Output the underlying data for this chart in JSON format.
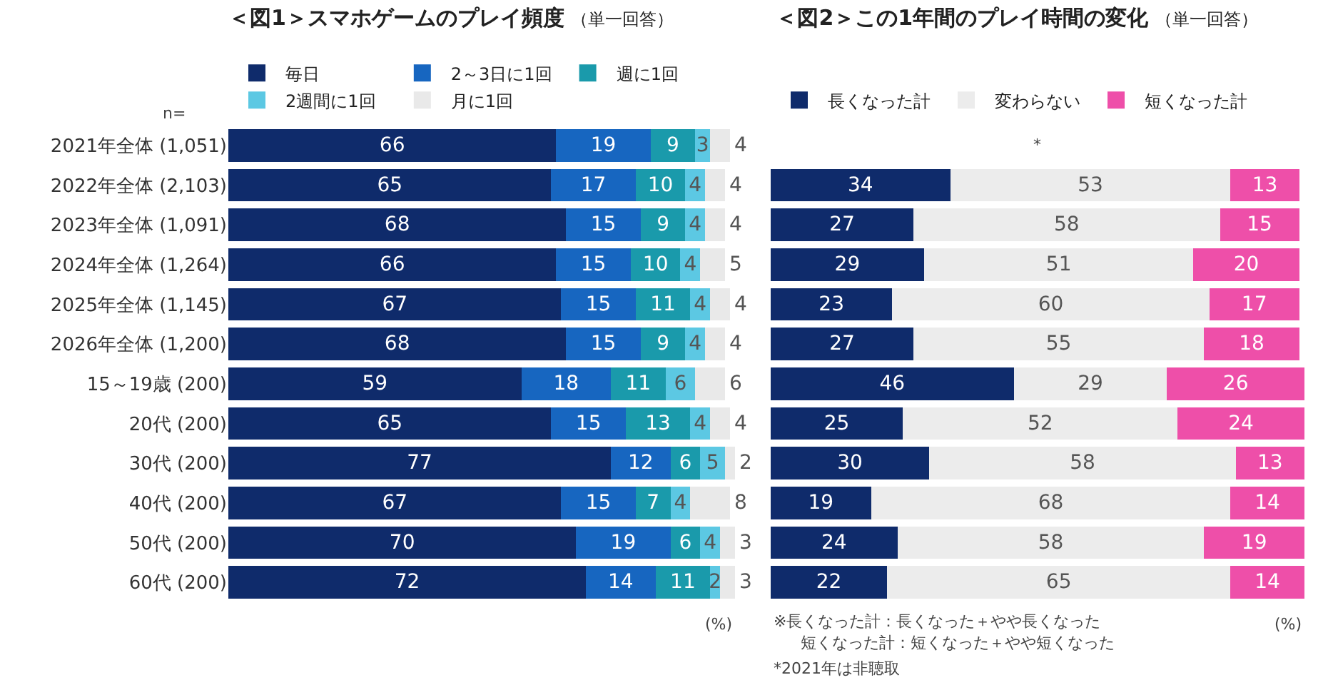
{
  "chart_data": [
    {
      "type": "bar",
      "orientation": "horizontal",
      "stacked": true,
      "title": "＜図1＞スマホゲームのプレイ頻度",
      "subtitle": "（単一回答）",
      "categories": [
        "2021年全体 (1,051)",
        "2022年全体 (2,103)",
        "2023年全体 (1,091)",
        "2024年全体 (1,264)",
        "2025年全体 (1,145)",
        "2026年全体 (1,200)",
        "15～19歳 (200)",
        "20代 (200)",
        "30代 (200)",
        "40代 (200)",
        "50代 (200)",
        "60代 (200)"
      ],
      "series": [
        {
          "name": "毎日",
          "color": "#0f2b6b",
          "values": [
            66,
            65,
            68,
            66,
            67,
            68,
            59,
            65,
            77,
            67,
            70,
            72
          ]
        },
        {
          "name": "2～3日に1回",
          "color": "#1766c0",
          "values": [
            19,
            17,
            15,
            15,
            15,
            15,
            18,
            15,
            12,
            15,
            19,
            14
          ]
        },
        {
          "name": "週に1回",
          "color": "#1a9aab",
          "values": [
            9,
            10,
            9,
            10,
            11,
            9,
            11,
            13,
            6,
            7,
            6,
            11
          ]
        },
        {
          "name": "2週間に1回",
          "color": "#5cc8e3",
          "values": [
            3,
            4,
            4,
            4,
            4,
            4,
            6,
            4,
            5,
            4,
            4,
            2
          ]
        },
        {
          "name": "月に1回",
          "color": "#e9e9e9",
          "values": [
            4,
            4,
            4,
            5,
            4,
            4,
            6,
            4,
            2,
            8,
            3,
            3
          ]
        }
      ],
      "xlim": [
        0,
        102
      ],
      "data_labels": true,
      "tick_labels": "y",
      "grid": false,
      "legend": "top",
      "annotations": [
        "n=",
        "(%)"
      ]
    },
    {
      "type": "bar",
      "orientation": "horizontal",
      "stacked": true,
      "title": "＜図2＞この1年間のプレイ時間の変化",
      "subtitle": "（単一回答）",
      "categories": [
        null,
        null,
        null,
        null,
        null,
        null,
        null,
        null,
        null,
        null,
        null,
        null
      ],
      "series": [
        {
          "name": "長くなった計",
          "color": "#0f2b6b",
          "values": [
            null,
            34,
            27,
            29,
            23,
            27,
            46,
            25,
            30,
            19,
            24,
            22
          ]
        },
        {
          "name": "変わらない",
          "color": "#ececec",
          "values": [
            null,
            53,
            58,
            51,
            60,
            55,
            29,
            52,
            58,
            68,
            58,
            65
          ]
        },
        {
          "name": "短くなった計",
          "color": "#ee4fa9",
          "values": [
            null,
            13,
            15,
            20,
            17,
            18,
            26,
            24,
            13,
            14,
            19,
            14
          ]
        }
      ],
      "xlim": [
        0,
        101
      ],
      "data_labels": true,
      "tick_labels": false,
      "grid": false,
      "legend": "top",
      "annotations": [
        "*",
        "(%)",
        "※長くなった計：長くなった＋やや長くなった",
        "短くなった計：短くなった＋やや短くなった",
        "*2021年は非聴取"
      ]
    }
  ]
}
